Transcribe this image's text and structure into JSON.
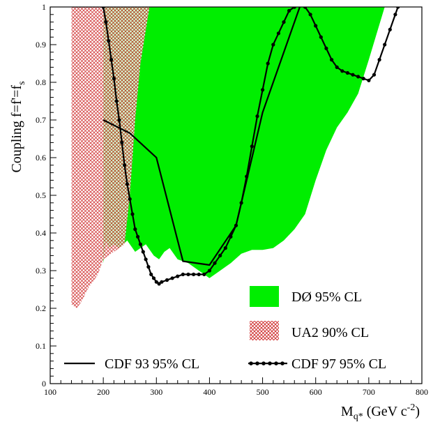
{
  "chart_data": {
    "type": "line",
    "xlabel": "M",
    "xlabel_sub": "q*",
    "xlabel_units": " (GeV c",
    "xlabel_sup": "-2",
    "xlabel_close": ")",
    "ylabel": "Coupling f=f'=f",
    "ylabel_sub": "s",
    "xlim": [
      100,
      800
    ],
    "ylim": [
      0,
      1
    ],
    "x_ticks": [
      "100",
      "200",
      "300",
      "400",
      "500",
      "600",
      "700",
      "800"
    ],
    "y_ticks": [
      "0",
      "0.1",
      "0.2",
      "0.3",
      "0.4",
      "0.5",
      "0.6",
      "0.7",
      "0.8",
      "0.9",
      "1"
    ],
    "series": [
      {
        "name": "DØ 95% CL",
        "kind": "filled-region",
        "color": "#00ee00",
        "upper": [
          [
            200,
            1.0
          ],
          [
            730,
            1.0
          ]
        ],
        "lower": [
          [
            200,
            0.32
          ],
          [
            205,
            0.38
          ],
          [
            210,
            0.36
          ],
          [
            220,
            0.37
          ],
          [
            230,
            0.36
          ],
          [
            245,
            0.38
          ],
          [
            260,
            0.35
          ],
          [
            280,
            0.37
          ],
          [
            295,
            0.34
          ],
          [
            305,
            0.33
          ],
          [
            315,
            0.35
          ],
          [
            325,
            0.36
          ],
          [
            340,
            0.33
          ],
          [
            360,
            0.32
          ],
          [
            380,
            0.3
          ],
          [
            400,
            0.28
          ],
          [
            420,
            0.3
          ],
          [
            440,
            0.32
          ],
          [
            460,
            0.345
          ],
          [
            480,
            0.355
          ],
          [
            500,
            0.355
          ],
          [
            520,
            0.36
          ],
          [
            540,
            0.38
          ],
          [
            560,
            0.41
          ],
          [
            580,
            0.45
          ],
          [
            600,
            0.54
          ],
          [
            620,
            0.62
          ],
          [
            640,
            0.68
          ],
          [
            660,
            0.72
          ],
          [
            680,
            0.77
          ],
          [
            700,
            0.86
          ],
          [
            715,
            0.93
          ],
          [
            730,
            1.0
          ]
        ]
      },
      {
        "name": "UA2 90% CL",
        "kind": "hatched-region",
        "color": "#cc2222",
        "upper": [
          [
            140,
            1.0
          ],
          [
            287,
            1.0
          ]
        ],
        "lower": [
          [
            140,
            0.21
          ],
          [
            150,
            0.2
          ],
          [
            160,
            0.22
          ],
          [
            170,
            0.25
          ],
          [
            180,
            0.27
          ],
          [
            190,
            0.29
          ],
          [
            200,
            0.33
          ],
          [
            210,
            0.34
          ],
          [
            220,
            0.35
          ],
          [
            230,
            0.36
          ],
          [
            240,
            0.37
          ],
          [
            250,
            0.5
          ],
          [
            260,
            0.7
          ],
          [
            270,
            0.85
          ],
          [
            287,
            1.0
          ]
        ]
      },
      {
        "name": "CDF 93 95% CL",
        "kind": "line",
        "color": "#000000",
        "points": [
          [
            200,
            0.7
          ],
          [
            250,
            0.665
          ],
          [
            300,
            0.6
          ],
          [
            350,
            0.325
          ],
          [
            400,
            0.315
          ],
          [
            450,
            0.42
          ],
          [
            500,
            0.72
          ],
          [
            570,
            1.0
          ]
        ]
      },
      {
        "name": "CDF 97 95% CL",
        "kind": "line-markers",
        "color": "#000000",
        "points": [
          [
            200,
            1.0
          ],
          [
            205,
            0.96
          ],
          [
            210,
            0.91
          ],
          [
            215,
            0.86
          ],
          [
            220,
            0.81
          ],
          [
            225,
            0.75
          ],
          [
            230,
            0.7
          ],
          [
            235,
            0.64
          ],
          [
            240,
            0.58
          ],
          [
            245,
            0.53
          ],
          [
            250,
            0.49
          ],
          [
            255,
            0.45
          ],
          [
            260,
            0.41
          ],
          [
            265,
            0.39
          ],
          [
            270,
            0.37
          ],
          [
            275,
            0.35
          ],
          [
            280,
            0.33
          ],
          [
            285,
            0.31
          ],
          [
            290,
            0.29
          ],
          [
            295,
            0.28
          ],
          [
            300,
            0.27
          ],
          [
            305,
            0.265
          ],
          [
            310,
            0.27
          ],
          [
            320,
            0.275
          ],
          [
            330,
            0.28
          ],
          [
            340,
            0.285
          ],
          [
            350,
            0.29
          ],
          [
            360,
            0.29
          ],
          [
            370,
            0.29
          ],
          [
            380,
            0.29
          ],
          [
            390,
            0.29
          ],
          [
            400,
            0.3
          ],
          [
            410,
            0.32
          ],
          [
            420,
            0.34
          ],
          [
            430,
            0.36
          ],
          [
            440,
            0.39
          ],
          [
            450,
            0.42
          ],
          [
            460,
            0.48
          ],
          [
            470,
            0.55
          ],
          [
            480,
            0.63
          ],
          [
            490,
            0.71
          ],
          [
            500,
            0.78
          ],
          [
            510,
            0.85
          ],
          [
            520,
            0.9
          ],
          [
            530,
            0.93
          ],
          [
            540,
            0.96
          ],
          [
            550,
            0.99
          ],
          [
            560,
            1.0
          ],
          [
            570,
            1.01
          ],
          [
            580,
            1.0
          ],
          [
            590,
            0.98
          ],
          [
            600,
            0.95
          ],
          [
            610,
            0.92
          ],
          [
            620,
            0.89
          ],
          [
            630,
            0.86
          ],
          [
            640,
            0.84
          ],
          [
            650,
            0.83
          ],
          [
            660,
            0.825
          ],
          [
            670,
            0.82
          ],
          [
            680,
            0.815
          ],
          [
            690,
            0.81
          ],
          [
            700,
            0.805
          ],
          [
            710,
            0.82
          ],
          [
            720,
            0.86
          ],
          [
            730,
            0.9
          ],
          [
            740,
            0.94
          ],
          [
            750,
            0.98
          ],
          [
            755,
            1.0
          ]
        ]
      }
    ],
    "legend": {
      "placement": "inside"
    },
    "grid": false
  }
}
